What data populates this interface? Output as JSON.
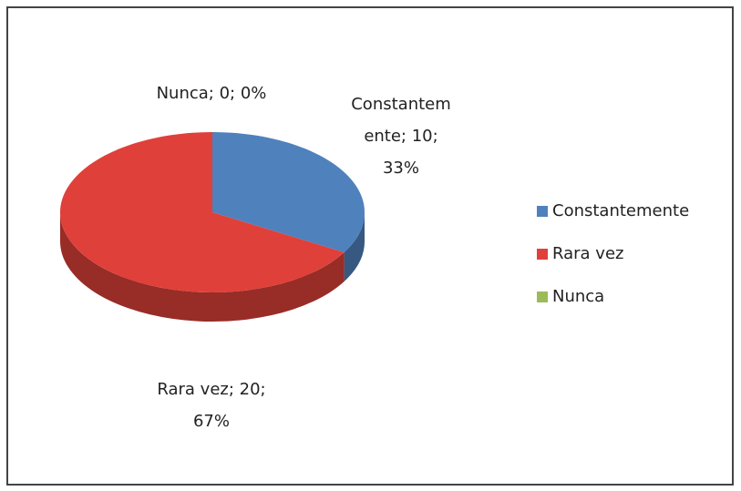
{
  "chart_data": {
    "type": "pie",
    "categories": [
      "Constantemente",
      "Rara vez",
      "Nunca"
    ],
    "values": [
      10,
      20,
      0
    ],
    "value_labels": [
      "Constantemente; 10; 33%",
      "Rara vez; 20; 67%",
      "Nunca; 0; 0%"
    ],
    "colors": [
      "#4f81bd",
      "#e0403a",
      "#9bbb59"
    ],
    "legend": "right"
  }
}
